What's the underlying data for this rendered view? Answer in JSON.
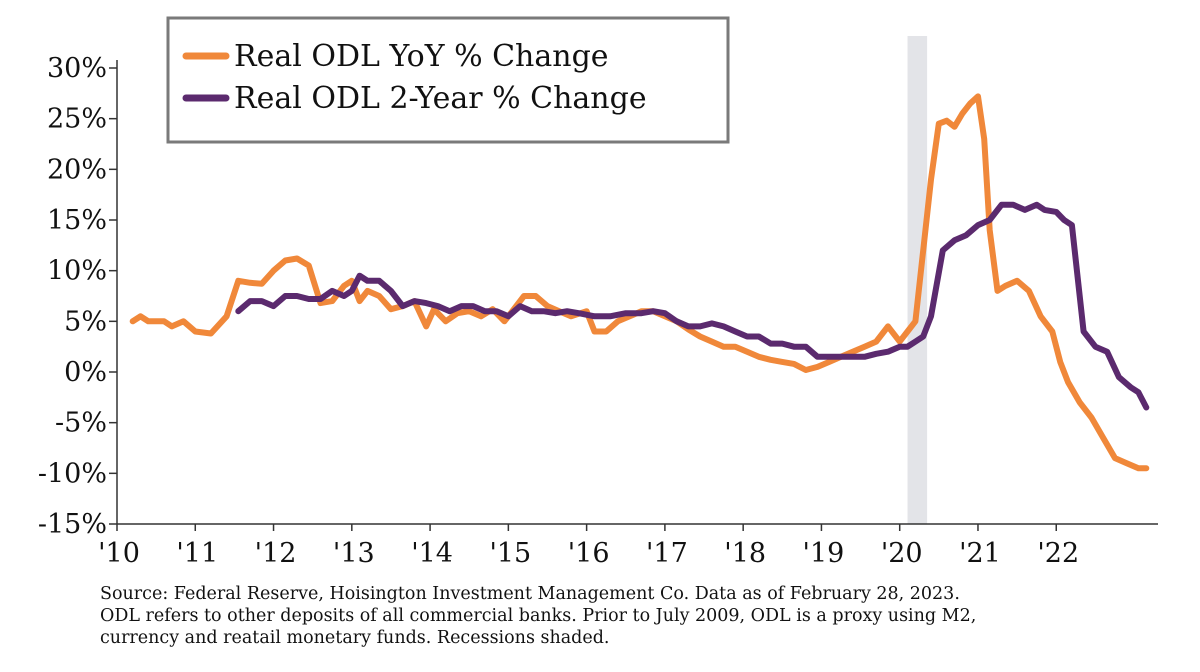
{
  "chart_data": {
    "type": "line",
    "title": "",
    "xlabel": "",
    "ylabel": "",
    "x_tick_labels": [
      "'10",
      "'11",
      "'12",
      "'13",
      "'14",
      "'15",
      "'16",
      "'17",
      "'18",
      "'19",
      "'20",
      "'21",
      "'22"
    ],
    "y_tick_labels": [
      "30%",
      "25%",
      "20%",
      "15%",
      "10%",
      "5%",
      "0%",
      "-5%",
      "-10%",
      "-15%"
    ],
    "ylim": [
      -15,
      30
    ],
    "xlim": [
      2010.0,
      2023.3
    ],
    "grid": false,
    "legend_position": "top-left",
    "recession_shading": [
      2020.1,
      2020.35
    ],
    "series": [
      {
        "name": "Real ODL YoY % Change",
        "color": "#f0883a",
        "x": [
          2010.2,
          2010.3,
          2010.4,
          2010.6,
          2010.7,
          2010.85,
          2011.0,
          2011.2,
          2011.4,
          2011.55,
          2011.7,
          2011.85,
          2012.0,
          2012.15,
          2012.3,
          2012.45,
          2012.6,
          2012.75,
          2012.9,
          2013.0,
          2013.1,
          2013.2,
          2013.35,
          2013.5,
          2013.65,
          2013.8,
          2013.95,
          2014.05,
          2014.2,
          2014.35,
          2014.5,
          2014.65,
          2014.8,
          2014.95,
          2015.05,
          2015.2,
          2015.35,
          2015.5,
          2015.65,
          2015.8,
          2016.0,
          2016.1,
          2016.25,
          2016.4,
          2016.55,
          2016.7,
          2016.85,
          2017.0,
          2017.15,
          2017.3,
          2017.45,
          2017.6,
          2017.75,
          2017.9,
          2018.05,
          2018.2,
          2018.35,
          2018.5,
          2018.65,
          2018.8,
          2018.95,
          2019.1,
          2019.25,
          2019.4,
          2019.55,
          2019.7,
          2019.85,
          2020.0,
          2020.1,
          2020.2,
          2020.3,
          2020.4,
          2020.5,
          2020.6,
          2020.7,
          2020.8,
          2020.9,
          2021.0,
          2021.08,
          2021.15,
          2021.25,
          2021.35,
          2021.5,
          2021.65,
          2021.8,
          2021.95,
          2022.05,
          2022.15,
          2022.3,
          2022.45,
          2022.6,
          2022.75,
          2022.9,
          2023.05,
          2023.15
        ],
        "y": [
          5.0,
          5.5,
          5.0,
          5.0,
          4.5,
          5.0,
          4.0,
          3.8,
          5.5,
          9.0,
          8.8,
          8.7,
          10.0,
          11.0,
          11.2,
          10.5,
          6.8,
          7.0,
          8.5,
          9.0,
          7.0,
          8.0,
          7.5,
          6.2,
          6.5,
          7.0,
          4.5,
          6.2,
          5.0,
          5.8,
          6.0,
          5.5,
          6.2,
          5.0,
          6.0,
          7.5,
          7.5,
          6.5,
          6.0,
          5.5,
          6.0,
          4.0,
          4.0,
          5.0,
          5.5,
          6.0,
          6.0,
          5.5,
          5.0,
          4.2,
          3.5,
          3.0,
          2.5,
          2.5,
          2.0,
          1.5,
          1.2,
          1.0,
          0.8,
          0.2,
          0.5,
          1.0,
          1.5,
          2.0,
          2.5,
          3.0,
          4.5,
          3.0,
          4.0,
          5.0,
          12.0,
          19.0,
          24.5,
          24.8,
          24.2,
          25.5,
          26.5,
          27.2,
          23.0,
          14.0,
          8.0,
          8.5,
          9.0,
          8.0,
          5.5,
          4.0,
          1.0,
          -1.0,
          -3.0,
          -4.5,
          -6.5,
          -8.5,
          -9.0,
          -9.5,
          -9.5
        ]
      },
      {
        "name": "Real ODL 2-Year % Change",
        "color": "#5b2a6e",
        "x": [
          2011.55,
          2011.7,
          2011.85,
          2012.0,
          2012.15,
          2012.3,
          2012.45,
          2012.6,
          2012.75,
          2012.9,
          2013.0,
          2013.1,
          2013.2,
          2013.35,
          2013.5,
          2013.65,
          2013.8,
          2013.95,
          2014.1,
          2014.25,
          2014.4,
          2014.55,
          2014.7,
          2014.85,
          2015.0,
          2015.15,
          2015.3,
          2015.45,
          2015.6,
          2015.75,
          2015.9,
          2016.1,
          2016.3,
          2016.5,
          2016.7,
          2016.85,
          2017.0,
          2017.15,
          2017.3,
          2017.45,
          2017.6,
          2017.75,
          2017.9,
          2018.05,
          2018.2,
          2018.35,
          2018.5,
          2018.65,
          2018.8,
          2018.95,
          2019.1,
          2019.25,
          2019.4,
          2019.55,
          2019.7,
          2019.85,
          2020.0,
          2020.1,
          2020.2,
          2020.3,
          2020.4,
          2020.55,
          2020.7,
          2020.85,
          2021.0,
          2021.15,
          2021.3,
          2021.45,
          2021.6,
          2021.75,
          2021.85,
          2022.0,
          2022.1,
          2022.2,
          2022.35,
          2022.5,
          2022.65,
          2022.8,
          2022.95,
          2023.05,
          2023.15
        ],
        "y": [
          6.0,
          7.0,
          7.0,
          6.5,
          7.5,
          7.5,
          7.2,
          7.2,
          8.0,
          7.5,
          8.0,
          9.5,
          9.0,
          9.0,
          8.0,
          6.5,
          7.0,
          6.8,
          6.5,
          6.0,
          6.5,
          6.5,
          6.0,
          6.0,
          5.5,
          6.5,
          6.0,
          6.0,
          5.8,
          6.0,
          5.8,
          5.5,
          5.5,
          5.8,
          5.8,
          6.0,
          5.8,
          5.0,
          4.5,
          4.5,
          4.8,
          4.5,
          4.0,
          3.5,
          3.5,
          2.8,
          2.8,
          2.5,
          2.5,
          1.5,
          1.5,
          1.5,
          1.5,
          1.5,
          1.8,
          2.0,
          2.5,
          2.5,
          3.0,
          3.5,
          5.5,
          12.0,
          13.0,
          13.5,
          14.5,
          15.0,
          16.5,
          16.5,
          16.0,
          16.5,
          16.0,
          15.8,
          15.0,
          14.5,
          4.0,
          2.5,
          2.0,
          -0.5,
          -1.5,
          -2.0,
          -3.5
        ]
      }
    ]
  },
  "footnote": {
    "line1": "Source: Federal Reserve, Hoisington Investment Management Co. Data as of February 28, 2023.",
    "line2": "ODL refers to other deposits of all commercial banks. Prior to July 2009, ODL is a proxy using M2,",
    "line3": "currency and reatail monetary funds. Recessions shaded."
  }
}
